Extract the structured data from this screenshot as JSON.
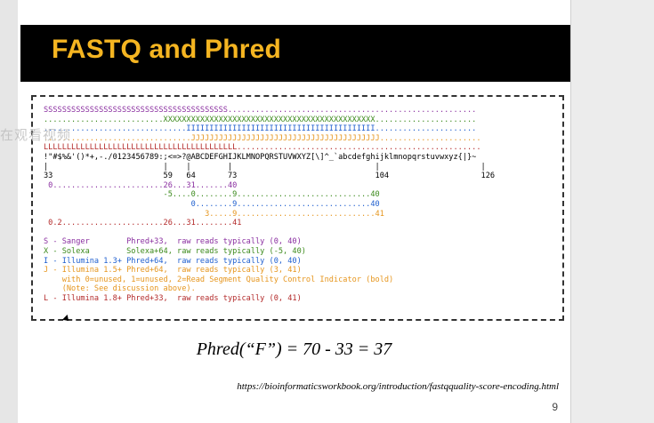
{
  "slide": {
    "title": "FASTQ and Phred",
    "formula": "Phred(“F”) = 70 - 33 = 37",
    "url": "https://bioinformaticsworkbook.org/introduction/fastqquality-score-encoding.html",
    "page_number": "9",
    "watermark": "在观看视频"
  },
  "encoding_table": {
    "rows": [
      {
        "key": "s",
        "text": "SSSSSSSSSSSSSSSSSSSSSSSSSSSSSSSSSSSSSSSS......................................................"
      },
      {
        "key": "x",
        "text": "..........................XXXXXXXXXXXXXXXXXXXXXXXXXXXXXXXXXXXXXXXXXXXXXX......................"
      },
      {
        "key": "i",
        "text": "...............................IIIIIIIIIIIIIIIIIIIIIIIIIIIIIIIIIIIIIIIII......................"
      },
      {
        "key": "j",
        "text": "................................JJJJJJJJJJJJJJJJJJJJJJJJJJJJJJJJJJJJJJJJJ......................"
      },
      {
        "key": "l",
        "text": "LLLLLLLLLLLLLLLLLLLLLLLLLLLLLLLLLLLLLLLLLL....................................................."
      },
      {
        "key": "k",
        "text": "!\"#$%&'()*+,-./0123456789:;<=>?@ABCDEFGHIJKLMNOPQRSTUVWXYZ[\\]^_`abcdefghijklmnopqrstuvwxyz{|}~"
      },
      {
        "key": "k",
        "text": "|                         |    |        |                               |                      |"
      },
      {
        "key": "k",
        "text": "33                        59   64       73                              104                    126"
      },
      {
        "key": "s",
        "text": " 0........................26...31.......40"
      },
      {
        "key": "x",
        "text": "                          -5....0........9.............................40"
      },
      {
        "key": "i",
        "text": "                                0........9.............................40"
      },
      {
        "key": "j",
        "text": "                                   3.....9..............................41"
      },
      {
        "key": "l",
        "text": " 0.2......................26...31........41"
      },
      {
        "key": "k",
        "text": " "
      },
      {
        "key": "s",
        "text": "S - Sanger        Phred+33,  raw reads typically (0, 40)"
      },
      {
        "key": "x",
        "text": "X - Solexa        Solexa+64, raw reads typically (-5, 40)"
      },
      {
        "key": "i",
        "text": "I - Illumina 1.3+ Phred+64,  raw reads typically (0, 40)"
      },
      {
        "key": "j",
        "text": "J - Illumina 1.5+ Phred+64,  raw reads typically (3, 41)"
      },
      {
        "key": "j",
        "text": "    with 0=unused, 1=unused, 2=Read Segment Quality Control Indicator (bold)"
      },
      {
        "key": "j",
        "text": "    (Note: See discussion above)."
      },
      {
        "key": "l",
        "text": "L - Illumina 1.8+ Phred+33,  raw reads typically (0, 41)"
      }
    ]
  }
}
